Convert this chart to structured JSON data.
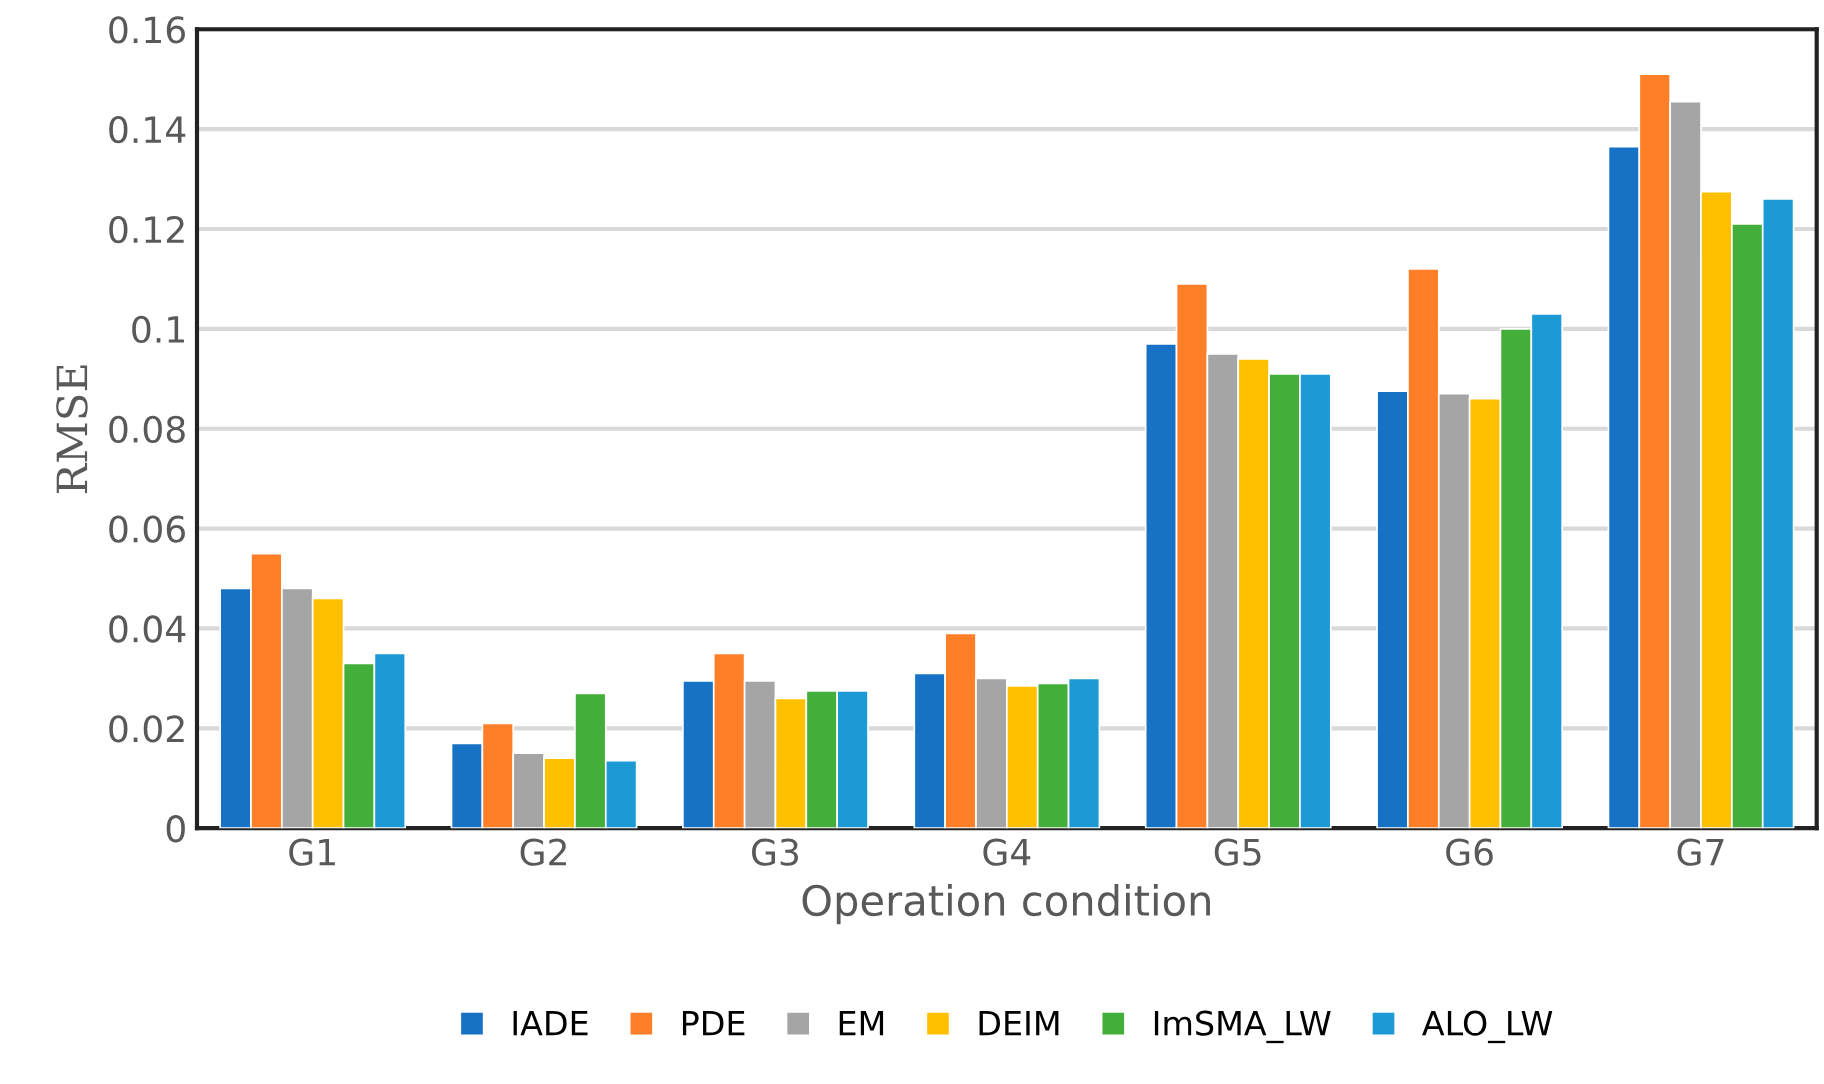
{
  "chart_data": {
    "type": "bar",
    "xlabel": "Operation condition",
    "ylabel": "RMSE",
    "categories": [
      "G1",
      "G2",
      "G3",
      "G4",
      "G5",
      "G6",
      "G7"
    ],
    "series": [
      {
        "name": "IADE",
        "color": "#1772c6",
        "values": [
          0.048,
          0.017,
          0.0295,
          0.031,
          0.097,
          0.0875,
          0.1365
        ]
      },
      {
        "name": "PDE",
        "color": "#fe7f27",
        "values": [
          0.055,
          0.021,
          0.035,
          0.039,
          0.109,
          0.112,
          0.151
        ]
      },
      {
        "name": "EM",
        "color": "#a5a5a5",
        "values": [
          0.048,
          0.015,
          0.0295,
          0.03,
          0.095,
          0.087,
          0.1455
        ]
      },
      {
        "name": "DEIM",
        "color": "#ffc000",
        "values": [
          0.046,
          0.014,
          0.026,
          0.0285,
          0.094,
          0.086,
          0.1275
        ]
      },
      {
        "name": "ImSMA_LW",
        "color": "#43ae39",
        "values": [
          0.033,
          0.027,
          0.0275,
          0.029,
          0.091,
          0.1,
          0.121
        ]
      },
      {
        "name": "ALO_LW",
        "color": "#1c9ad6",
        "values": [
          0.035,
          0.0135,
          0.0275,
          0.03,
          0.091,
          0.103,
          0.126
        ]
      }
    ],
    "ylim": [
      0,
      0.16
    ],
    "yticks": [
      0,
      0.02,
      0.04,
      0.06,
      0.08,
      0.1,
      0.12,
      0.14,
      0.16
    ],
    "grid": "y",
    "legend": "bottom"
  }
}
